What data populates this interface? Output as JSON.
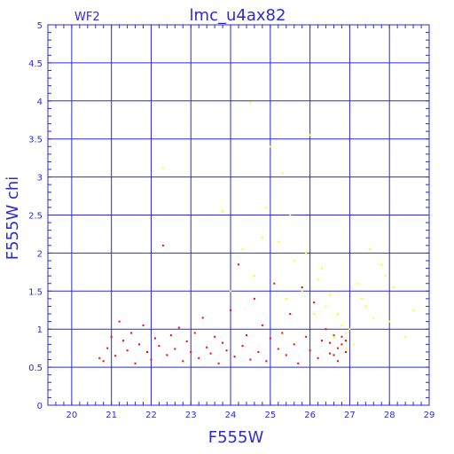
{
  "chart_data": {
    "type": "scatter",
    "title": "lmc_u4ax82",
    "corner_label": "WF2",
    "xlabel": "F555W",
    "ylabel": "F555W  chi",
    "xlim": [
      19.4,
      29
    ],
    "ylim": [
      0,
      5
    ],
    "xticks": [
      20,
      21,
      22,
      23,
      24,
      25,
      26,
      27,
      28,
      29
    ],
    "yticks": [
      0,
      0.5,
      1,
      1.5,
      2,
      2.5,
      3,
      3.5,
      4,
      4.5,
      5
    ],
    "xtick_labels": [
      "20",
      "21",
      "22",
      "23",
      "24",
      "25",
      "26",
      "27",
      "28",
      "29"
    ],
    "ytick_labels": [
      "0",
      "0.5",
      "1",
      "1.5",
      "2",
      "2.5",
      "3",
      "3.5",
      "4",
      "4.5",
      "5"
    ],
    "grid": true,
    "colors": {
      "axis": "#2b2bd6",
      "grid": "#2b2bd6"
    },
    "series": [
      {
        "color": "#ff0000",
        "points": [
          [
            20.7,
            0.62
          ],
          [
            20.8,
            0.58
          ],
          [
            20.9,
            0.75
          ],
          [
            21.0,
            0.9
          ],
          [
            21.1,
            0.65
          ],
          [
            21.2,
            1.1
          ],
          [
            21.3,
            0.85
          ],
          [
            21.4,
            0.72
          ],
          [
            21.5,
            0.95
          ],
          [
            21.6,
            0.55
          ],
          [
            21.7,
            0.8
          ],
          [
            21.8,
            1.05
          ],
          [
            21.9,
            0.7
          ],
          [
            22.0,
            0.6
          ],
          [
            22.1,
            0.88
          ],
          [
            22.2,
            0.78
          ],
          [
            22.3,
            2.1
          ],
          [
            22.4,
            0.66
          ],
          [
            22.5,
            0.92
          ],
          [
            22.6,
            0.74
          ],
          [
            22.7,
            1.02
          ],
          [
            22.8,
            0.58
          ],
          [
            22.9,
            0.84
          ],
          [
            23.0,
            0.7
          ],
          [
            23.1,
            0.95
          ],
          [
            23.2,
            0.62
          ],
          [
            23.3,
            1.15
          ],
          [
            23.4,
            0.76
          ],
          [
            23.5,
            0.68
          ],
          [
            23.6,
            0.9
          ],
          [
            23.7,
            0.55
          ],
          [
            23.8,
            0.82
          ],
          [
            23.9,
            0.72
          ],
          [
            24.0,
            1.25
          ],
          [
            24.1,
            0.64
          ],
          [
            24.2,
            1.85
          ],
          [
            24.3,
            0.78
          ],
          [
            24.4,
            0.92
          ],
          [
            24.5,
            0.6
          ],
          [
            24.6,
            1.4
          ],
          [
            24.7,
            0.7
          ],
          [
            24.8,
            1.05
          ],
          [
            24.9,
            0.58
          ],
          [
            25.0,
            0.88
          ],
          [
            25.1,
            1.6
          ],
          [
            25.2,
            0.74
          ],
          [
            25.3,
            0.95
          ],
          [
            25.4,
            0.66
          ],
          [
            25.5,
            1.2
          ],
          [
            25.6,
            0.8
          ],
          [
            25.7,
            0.55
          ],
          [
            25.8,
            1.55
          ],
          [
            25.9,
            0.9
          ],
          [
            26.0,
            0.72
          ],
          [
            26.1,
            1.35
          ],
          [
            26.2,
            0.62
          ],
          [
            26.3,
            0.85
          ],
          [
            26.4,
            1.0
          ],
          [
            26.5,
            0.68
          ],
          [
            26.6,
            0.92
          ],
          [
            26.7,
            0.58
          ],
          [
            26.8,
            0.8
          ],
          [
            26.9,
            0.7
          ],
          [
            26.5,
            0.82
          ],
          [
            26.7,
            0.75
          ],
          [
            26.8,
            0.9
          ],
          [
            26.6,
            0.66
          ],
          [
            26.9,
            0.85
          ]
        ]
      },
      {
        "color": "#ffff00",
        "points": [
          [
            22.3,
            3.12
          ],
          [
            24.5,
            3.98
          ],
          [
            25.0,
            3.4
          ],
          [
            25.3,
            3.05
          ],
          [
            26.0,
            3.55
          ],
          [
            24.8,
            2.2
          ],
          [
            25.5,
            2.5
          ],
          [
            25.9,
            2.0
          ],
          [
            26.3,
            1.8
          ],
          [
            26.5,
            1.45
          ],
          [
            26.7,
            1.2
          ],
          [
            26.9,
            0.95
          ],
          [
            27.0,
            1.0
          ],
          [
            27.2,
            1.6
          ],
          [
            27.4,
            1.3
          ],
          [
            27.5,
            2.05
          ],
          [
            27.8,
            1.85
          ],
          [
            28.1,
            1.55
          ],
          [
            28.4,
            0.9
          ],
          [
            28.6,
            1.25
          ],
          [
            28.0,
            1.1
          ],
          [
            27.6,
            1.15
          ],
          [
            27.1,
            0.8
          ],
          [
            26.8,
            1.05
          ],
          [
            26.4,
            1.3
          ],
          [
            26.2,
            1.65
          ],
          [
            25.8,
            1.5
          ],
          [
            25.6,
            1.9
          ],
          [
            25.2,
            2.15
          ],
          [
            24.9,
            2.6
          ],
          [
            24.3,
            2.05
          ],
          [
            23.8,
            2.55
          ],
          [
            24.0,
            1.5
          ],
          [
            24.6,
            1.7
          ],
          [
            25.4,
            1.4
          ],
          [
            26.1,
            1.2
          ],
          [
            26.6,
            0.9
          ],
          [
            26.9,
            0.75
          ],
          [
            27.3,
            1.4
          ],
          [
            27.9,
            1.7
          ]
        ]
      }
    ]
  }
}
